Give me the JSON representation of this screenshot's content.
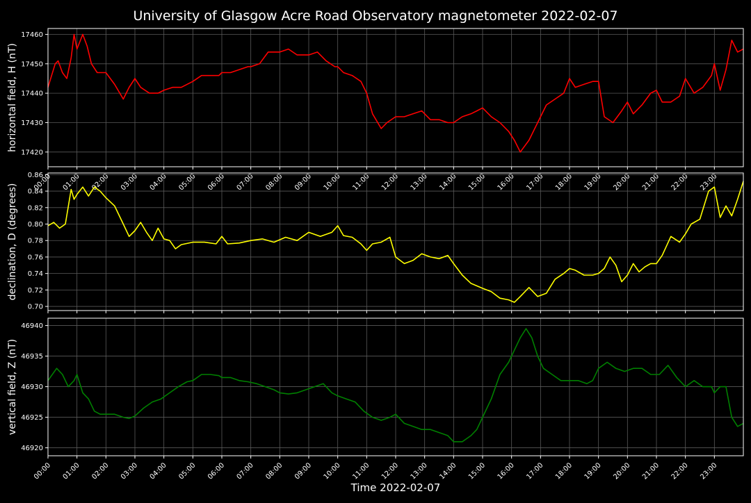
{
  "title": "University of Glasgow Acre Road Observatory magnetometer 2022-02-07",
  "xlabel": "Time 2022-02-07",
  "colors": {
    "background": "#000000",
    "text": "#ffffff",
    "grid": "#5a5a5a",
    "axes": "#ffffff"
  },
  "chart_data": [
    {
      "type": "line",
      "name": "horizontal",
      "ylabel": "horizontal field, H (nT)",
      "color": "#ff0000",
      "grid": true,
      "ylim": [
        17415,
        17462
      ],
      "yticks": [
        17420,
        17430,
        17440,
        17450,
        17460
      ],
      "xlim": [
        0,
        24
      ],
      "xticks": [
        "00:00",
        "01:00",
        "02:00",
        "03:00",
        "04:00",
        "05:00",
        "06:00",
        "07:00",
        "08:00",
        "09:00",
        "10:00",
        "11:00",
        "12:00",
        "13:00",
        "14:00",
        "15:00",
        "16:00",
        "17:00",
        "18:00",
        "19:00",
        "20:00",
        "21:00",
        "22:00",
        "23:00"
      ],
      "x": [
        0,
        0.25,
        0.35,
        0.5,
        0.65,
        0.8,
        0.9,
        1.0,
        1.2,
        1.35,
        1.5,
        1.7,
        1.9,
        2.0,
        2.3,
        2.6,
        2.8,
        3.0,
        3.2,
        3.5,
        3.8,
        4.0,
        4.3,
        4.6,
        5.0,
        5.3,
        5.6,
        5.9,
        6.0,
        6.3,
        6.6,
        6.9,
        7.0,
        7.3,
        7.6,
        8.0,
        8.3,
        8.6,
        9.0,
        9.3,
        9.6,
        9.9,
        10.0,
        10.2,
        10.5,
        10.8,
        11.0,
        11.2,
        11.5,
        11.7,
        12.0,
        12.3,
        12.6,
        12.9,
        13.2,
        13.5,
        13.8,
        14.0,
        14.3,
        14.6,
        14.8,
        15.0,
        15.3,
        15.6,
        15.9,
        16.1,
        16.3,
        16.6,
        16.9,
        17.2,
        17.5,
        17.8,
        18.0,
        18.2,
        18.5,
        18.8,
        19.0,
        19.2,
        19.5,
        19.8,
        20.0,
        20.2,
        20.5,
        20.8,
        21.0,
        21.2,
        21.5,
        21.8,
        22.0,
        22.3,
        22.6,
        22.9,
        23.0,
        23.2,
        23.4,
        23.6,
        23.8,
        24.0
      ],
      "y": [
        17442,
        17450,
        17451,
        17447,
        17445,
        17452,
        17460,
        17455,
        17460,
        17456,
        17450,
        17447,
        17447,
        17447,
        17443,
        17438,
        17442,
        17445,
        17442,
        17440,
        17440,
        17441,
        17442,
        17442,
        17444,
        17446,
        17446,
        17446,
        17447,
        17447,
        17448,
        17449,
        17449,
        17450,
        17454,
        17454,
        17455,
        17453,
        17453,
        17454,
        17451,
        17449,
        17449,
        17447,
        17446,
        17444,
        17440,
        17433,
        17428,
        17430,
        17432,
        17432,
        17433,
        17434,
        17431,
        17431,
        17430,
        17430,
        17432,
        17433,
        17434,
        17435,
        17432,
        17430,
        17427,
        17424,
        17420,
        17424,
        17430,
        17436,
        17438,
        17440,
        17445,
        17442,
        17443,
        17444,
        17444,
        17432,
        17430,
        17434,
        17437,
        17433,
        17436,
        17440,
        17441,
        17437,
        17437,
        17439,
        17445,
        17440,
        17442,
        17446,
        17450,
        17441,
        17448,
        17458,
        17454,
        17455
      ]
    },
    {
      "type": "line",
      "name": "declination",
      "ylabel": "declination, D (degrees)",
      "color": "#ffff00",
      "grid": true,
      "ylim": [
        0.695,
        0.862
      ],
      "yticks": [
        0.7,
        0.72,
        0.74,
        0.76,
        0.78,
        0.8,
        0.82,
        0.84,
        0.86
      ],
      "xlim": [
        0,
        24
      ],
      "x": [
        0,
        0.2,
        0.4,
        0.6,
        0.8,
        0.9,
        1.0,
        1.2,
        1.4,
        1.6,
        1.8,
        2.0,
        2.3,
        2.6,
        2.8,
        3.0,
        3.2,
        3.4,
        3.6,
        3.8,
        4.0,
        4.2,
        4.4,
        4.6,
        5.0,
        5.4,
        5.8,
        6.0,
        6.2,
        6.6,
        7.0,
        7.4,
        7.8,
        8.2,
        8.6,
        9.0,
        9.4,
        9.8,
        10.0,
        10.2,
        10.5,
        10.8,
        11.0,
        11.2,
        11.5,
        11.8,
        12.0,
        12.3,
        12.6,
        12.9,
        13.2,
        13.5,
        13.8,
        14.0,
        14.3,
        14.6,
        15.0,
        15.3,
        15.6,
        15.9,
        16.1,
        16.3,
        16.6,
        16.9,
        17.2,
        17.5,
        17.8,
        18.0,
        18.2,
        18.5,
        18.8,
        19.0,
        19.2,
        19.4,
        19.6,
        19.8,
        20.0,
        20.2,
        20.4,
        20.6,
        20.8,
        21.0,
        21.2,
        21.5,
        21.8,
        22.0,
        22.2,
        22.5,
        22.8,
        23.0,
        23.2,
        23.4,
        23.6,
        23.8,
        24.0
      ],
      "y": [
        0.798,
        0.802,
        0.795,
        0.8,
        0.842,
        0.83,
        0.836,
        0.845,
        0.834,
        0.845,
        0.84,
        0.832,
        0.822,
        0.8,
        0.785,
        0.792,
        0.802,
        0.79,
        0.78,
        0.795,
        0.782,
        0.78,
        0.77,
        0.775,
        0.778,
        0.778,
        0.776,
        0.785,
        0.776,
        0.777,
        0.78,
        0.782,
        0.778,
        0.784,
        0.78,
        0.79,
        0.785,
        0.79,
        0.798,
        0.786,
        0.784,
        0.776,
        0.768,
        0.776,
        0.778,
        0.784,
        0.76,
        0.752,
        0.756,
        0.764,
        0.76,
        0.758,
        0.762,
        0.752,
        0.738,
        0.728,
        0.722,
        0.718,
        0.71,
        0.708,
        0.705,
        0.712,
        0.723,
        0.712,
        0.716,
        0.733,
        0.74,
        0.746,
        0.744,
        0.738,
        0.738,
        0.74,
        0.746,
        0.76,
        0.75,
        0.73,
        0.738,
        0.752,
        0.742,
        0.748,
        0.752,
        0.752,
        0.762,
        0.785,
        0.778,
        0.788,
        0.8,
        0.806,
        0.84,
        0.845,
        0.808,
        0.822,
        0.81,
        0.83,
        0.852
      ]
    },
    {
      "type": "line",
      "name": "vertical",
      "ylabel": "vertical field, Z (nT)",
      "color": "#008000",
      "grid": true,
      "ylim": [
        46918.7,
        46941.2
      ],
      "yticks": [
        46920,
        46925,
        46930,
        46935,
        46940
      ],
      "xlim": [
        0,
        24
      ],
      "xticks": [
        "00:00",
        "01:00",
        "02:00",
        "03:00",
        "04:00",
        "05:00",
        "06:00",
        "07:00",
        "08:00",
        "09:00",
        "10:00",
        "11:00",
        "12:00",
        "13:00",
        "14:00",
        "15:00",
        "16:00",
        "17:00",
        "18:00",
        "19:00",
        "20:00",
        "21:00",
        "22:00",
        "23:00"
      ],
      "x": [
        0,
        0.3,
        0.5,
        0.7,
        0.9,
        1.0,
        1.2,
        1.4,
        1.6,
        1.8,
        2.0,
        2.3,
        2.6,
        2.8,
        3.0,
        3.3,
        3.6,
        3.9,
        4.2,
        4.5,
        4.8,
        5.0,
        5.3,
        5.6,
        5.9,
        6.0,
        6.3,
        6.6,
        6.9,
        7.2,
        7.5,
        7.8,
        8.0,
        8.3,
        8.6,
        8.9,
        9.2,
        9.5,
        9.8,
        10.0,
        10.3,
        10.6,
        10.9,
        11.2,
        11.5,
        11.8,
        12.0,
        12.3,
        12.6,
        12.9,
        13.2,
        13.5,
        13.8,
        14.0,
        14.3,
        14.6,
        14.8,
        15.0,
        15.3,
        15.6,
        15.9,
        16.1,
        16.3,
        16.5,
        16.7,
        16.9,
        17.1,
        17.4,
        17.7,
        18.0,
        18.3,
        18.6,
        18.8,
        19.0,
        19.3,
        19.6,
        19.9,
        20.2,
        20.5,
        20.8,
        21.1,
        21.4,
        21.7,
        22.0,
        22.3,
        22.6,
        22.9,
        23.0,
        23.2,
        23.4,
        23.6,
        23.8,
        24.0
      ],
      "y": [
        46931,
        46933,
        46932,
        46930,
        46931,
        46932,
        46929,
        46928,
        46926,
        46925.5,
        46925.5,
        46925.5,
        46925,
        46924.8,
        46925.2,
        46926.5,
        46927.5,
        46928,
        46929,
        46930,
        46930.8,
        46931,
        46932,
        46932,
        46931.8,
        46931.5,
        46931.5,
        46931,
        46930.8,
        46930.5,
        46930,
        46929.5,
        46929,
        46928.8,
        46929,
        46929.5,
        46930,
        46930.5,
        46929,
        46928.5,
        46928,
        46927.5,
        46926,
        46925,
        46924.5,
        46925,
        46925.5,
        46924,
        46923.5,
        46923,
        46923,
        46922.5,
        46922,
        46921,
        46921,
        46922,
        46923,
        46925,
        46928,
        46932,
        46934,
        46936,
        46938,
        46939.5,
        46938,
        46935,
        46933,
        46932,
        46931,
        46931,
        46931,
        46930.5,
        46931,
        46933,
        46934,
        46933,
        46932.5,
        46933,
        46933,
        46932,
        46932,
        46933.5,
        46931.5,
        46930,
        46931,
        46930,
        46930,
        46929,
        46930,
        46930,
        46925,
        46923.5,
        46924
      ]
    }
  ]
}
